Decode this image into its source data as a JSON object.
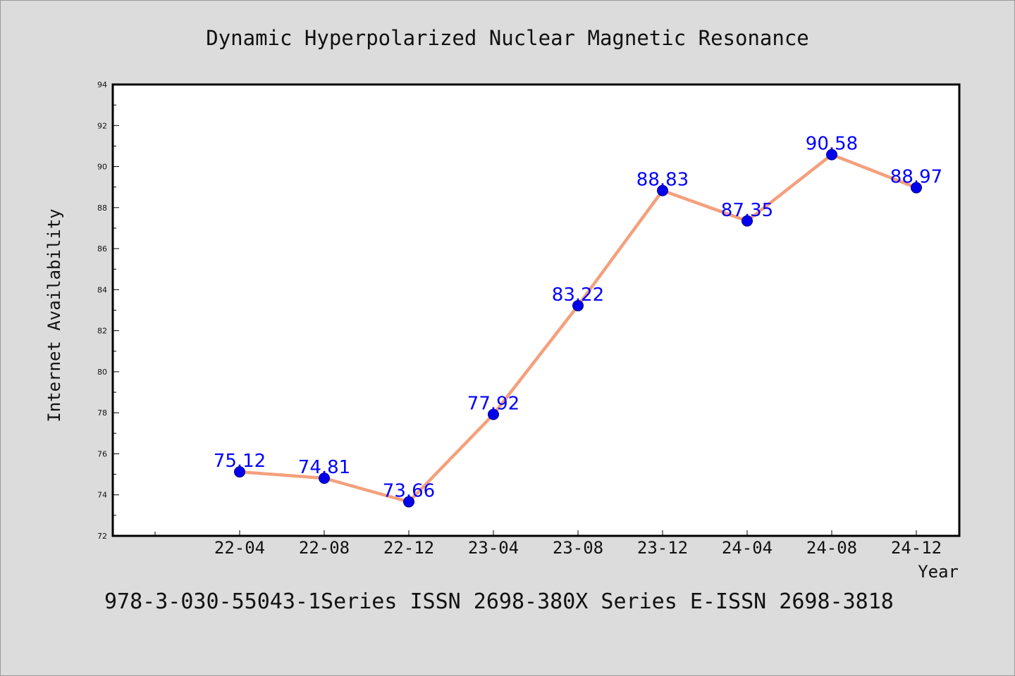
{
  "chart_data": {
    "type": "line",
    "title": "Dynamic Hyperpolarized Nuclear Magnetic Resonance",
    "xlabel": "Year",
    "ylabel": "Internet Availability",
    "categories": [
      "22-04",
      "22-08",
      "22-12",
      "23-04",
      "23-08",
      "23-12",
      "24-04",
      "24-08",
      "24-12"
    ],
    "series": [
      {
        "values": [
          75.12,
          74.81,
          73.66,
          77.92,
          83.22,
          88.83,
          87.35,
          90.58,
          88.97
        ]
      }
    ],
    "data_labels": [
      "75.12",
      "74.81",
      "73.66",
      "77.92",
      "83.22",
      "88.83",
      "87.35",
      "90.58",
      "88.97"
    ],
    "ylim": [
      72,
      94
    ],
    "yticks": [
      "72",
      "74",
      "76",
      "78",
      "80",
      "82",
      "84",
      "86",
      "88",
      "90",
      "92",
      "94"
    ],
    "grid": false,
    "colors": {
      "line": "#f4a07c",
      "marker": "#0000ee",
      "marker_edge": "#000080",
      "data_label": "#0000ff",
      "background": "#dcdcdc",
      "plot_background": "#ffffff"
    }
  },
  "footer": {
    "text": "978-3-030-55043-1Series ISSN 2698-380X Series E-ISSN 2698-3818"
  }
}
